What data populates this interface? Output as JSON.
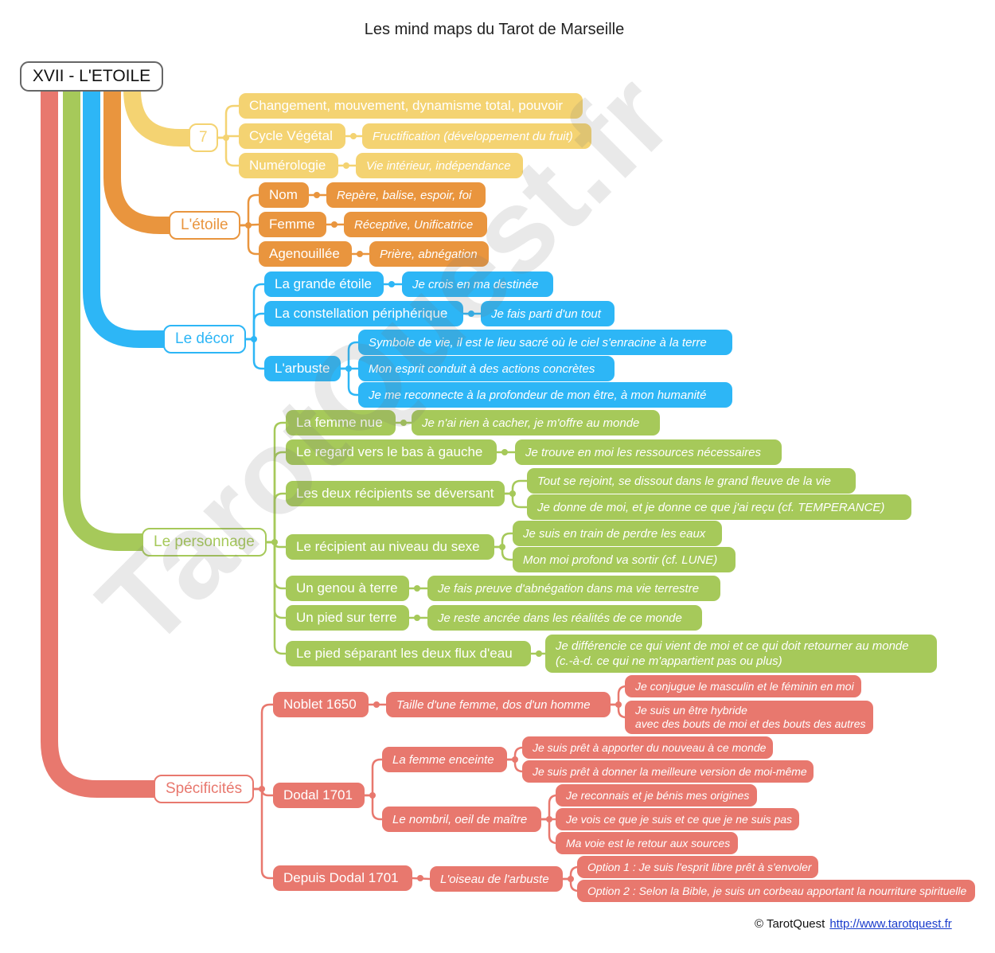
{
  "title": "Les mind maps du Tarot de Marseille",
  "watermark": "TarotQuest.fr",
  "root": "XVII - L'ETOILE",
  "colors": {
    "yellow": "#f4d372",
    "orange": "#e9953e",
    "blue": "#2db6f6",
    "green": "#a6c95a",
    "red": "#e8786e"
  },
  "yellow": {
    "hub": "7",
    "changement": "Changement, mouvement, dynamisme total, pouvoir",
    "cycle": "Cycle Végétal",
    "cycle_note": "Fructification (développement du fruit)",
    "numerologie": "Numérologie",
    "numerologie_note": "Vie intérieur, indépendance"
  },
  "orange": {
    "hub": "L'étoile",
    "nom": "Nom",
    "nom_note": "Repère, balise, espoir, foi",
    "femme": "Femme",
    "femme_note": "Réceptive, Unificatrice",
    "agenouillee": "Agenouillée",
    "agenouillee_note": "Prière, abnégation"
  },
  "blue": {
    "hub": "Le décor",
    "grande": "La grande étoile",
    "grande_note": "Je crois en ma destinée",
    "constellation": "La constellation périphérique",
    "constellation_note": "Je fais parti d'un tout",
    "arbuste": "L'arbuste",
    "arbuste_notes": [
      "Symbole de vie, il est le lieu sacré où le ciel s'enracine à la terre",
      "Mon esprit conduit à des actions concrètes",
      "Je me reconnecte à la profondeur de mon être, à mon humanité"
    ]
  },
  "green": {
    "hub": "Le personnage",
    "items": [
      {
        "label": "La femme nue",
        "notes": [
          "Je n'ai rien à cacher, je m'offre au monde"
        ]
      },
      {
        "label": "Le regard vers le bas à gauche",
        "notes": [
          "Je trouve en moi les ressources nécessaires"
        ]
      },
      {
        "label": "Les deux récipients se déversant",
        "notes": [
          "Tout se rejoint, se dissout dans le grand fleuve de la vie",
          "Je donne de moi, et je donne ce que j'ai reçu (cf. TEMPERANCE)"
        ]
      },
      {
        "label": "Le récipient au niveau du sexe",
        "notes": [
          "Je suis en train de perdre les eaux",
          "Mon moi profond va sortir (cf. LUNE)"
        ]
      },
      {
        "label": "Un genou à terre",
        "notes": [
          "Je fais preuve d'abnégation dans ma vie terrestre"
        ]
      },
      {
        "label": "Un pied sur terre",
        "notes": [
          "Je reste ancrée dans les réalités de ce monde"
        ]
      },
      {
        "label": "Le pied séparant les deux flux d'eau",
        "notes": [
          "Je différencie ce qui vient de moi et ce qui doit retourner au monde",
          "(c.-à-d. ce qui ne m'appartient pas ou plus)"
        ]
      }
    ]
  },
  "red": {
    "hub": "Spécificités",
    "noblet": "Noblet 1650",
    "noblet_note": "Taille d'une femme, dos d'un homme",
    "noblet_subs": [
      "Je conjugue le masculin et le féminin en moi",
      "Je suis un être hybride",
      "avec des bouts de moi et des bouts des autres"
    ],
    "dodal": "Dodal 1701",
    "enceinte": "La femme enceinte",
    "enceinte_subs": [
      "Je suis prêt à apporter du nouveau à ce monde",
      "Je suis prêt à donner la meilleure version de moi-même"
    ],
    "nombril": "Le nombril, oeil de maître",
    "nombril_subs": [
      "Je reconnais et je bénis mes origines",
      "Je vois ce que je suis et ce que je ne suis pas",
      "Ma voie est le retour aux sources"
    ],
    "depuis": "Depuis Dodal 1701",
    "oiseau": "L'oiseau de l'arbuste",
    "oiseau_subs": [
      "Option 1 : Je suis l'esprit libre prêt à s'envoler",
      "Option 2 : Selon la Bible, je suis un corbeau apportant la nourriture spirituelle"
    ]
  },
  "footer": {
    "copyright": "© TarotQuest",
    "link": "http://www.tarotquest.fr"
  }
}
